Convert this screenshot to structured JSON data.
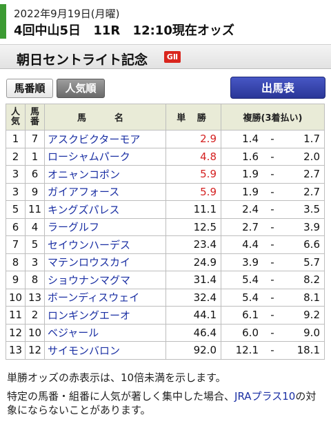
{
  "header": {
    "date": "2022年9月19日(月曜)",
    "meeting": "4回中山5日",
    "race": "11R",
    "odds_time": "12:10現在オッズ"
  },
  "race": {
    "name": "朝日セントライト記念",
    "grade": "GⅡ"
  },
  "tabs": {
    "by_number": "馬番順",
    "by_popularity": "人気順"
  },
  "entries_button": "出馬表",
  "table": {
    "headers": {
      "popularity": "人気",
      "number": "馬番",
      "name": "馬　名",
      "win": "単 勝",
      "place": "複勝(3着払い)"
    },
    "rows": [
      {
        "pop": "1",
        "num": "7",
        "name": "アスクビクターモア",
        "win": "2.9",
        "win_red": true,
        "pmin": "1.4",
        "sep": "-",
        "pmax": "1.7"
      },
      {
        "pop": "2",
        "num": "1",
        "name": "ローシャムパーク",
        "win": "4.8",
        "win_red": true,
        "pmin": "1.6",
        "sep": "-",
        "pmax": "2.0"
      },
      {
        "pop": "3",
        "num": "6",
        "name": "オニャンコポン",
        "win": "5.9",
        "win_red": true,
        "pmin": "1.9",
        "sep": "-",
        "pmax": "2.7"
      },
      {
        "pop": "3",
        "num": "9",
        "name": "ガイアフォース",
        "win": "5.9",
        "win_red": true,
        "pmin": "1.9",
        "sep": "-",
        "pmax": "2.7"
      },
      {
        "pop": "5",
        "num": "11",
        "name": "キングズパレス",
        "win": "11.1",
        "win_red": false,
        "pmin": "2.4",
        "sep": "-",
        "pmax": "3.5"
      },
      {
        "pop": "6",
        "num": "4",
        "name": "ラーグルフ",
        "win": "12.5",
        "win_red": false,
        "pmin": "2.7",
        "sep": "-",
        "pmax": "3.9"
      },
      {
        "pop": "7",
        "num": "5",
        "name": "セイウンハーデス",
        "win": "23.4",
        "win_red": false,
        "pmin": "4.4",
        "sep": "-",
        "pmax": "6.6"
      },
      {
        "pop": "8",
        "num": "3",
        "name": "マテンロウスカイ",
        "win": "24.9",
        "win_red": false,
        "pmin": "3.9",
        "sep": "-",
        "pmax": "5.7"
      },
      {
        "pop": "9",
        "num": "8",
        "name": "ショウナンマグマ",
        "win": "31.4",
        "win_red": false,
        "pmin": "5.4",
        "sep": "-",
        "pmax": "8.2"
      },
      {
        "pop": "10",
        "num": "13",
        "name": "ボーンディスウェイ",
        "win": "32.4",
        "win_red": false,
        "pmin": "5.4",
        "sep": "-",
        "pmax": "8.1"
      },
      {
        "pop": "11",
        "num": "2",
        "name": "ロンギングエーオ",
        "win": "44.1",
        "win_red": false,
        "pmin": "6.1",
        "sep": "-",
        "pmax": "9.2"
      },
      {
        "pop": "12",
        "num": "10",
        "name": "ベジャール",
        "win": "46.4",
        "win_red": false,
        "pmin": "6.0",
        "sep": "-",
        "pmax": "9.0"
      },
      {
        "pop": "13",
        "num": "12",
        "name": "サイモンバロン",
        "win": "92.0",
        "win_red": false,
        "pmin": "12.1",
        "sep": "-",
        "pmax": "18.1"
      }
    ]
  },
  "notes": {
    "red_note": "単勝オッズの赤表示は、10倍未満を示します。",
    "warning_before": "特定の馬番・組番に人気が著しく集中した場合、",
    "warning_link": "JRAプラス10",
    "warning_after": "の対象にならないことがあります。"
  },
  "colors": {
    "accent_green": "#3c9a33",
    "grade_red": "#d9251d",
    "horse_name_blue": "#1a2fa3",
    "odds_red": "#d42020",
    "button_blue": "#2a3697"
  }
}
